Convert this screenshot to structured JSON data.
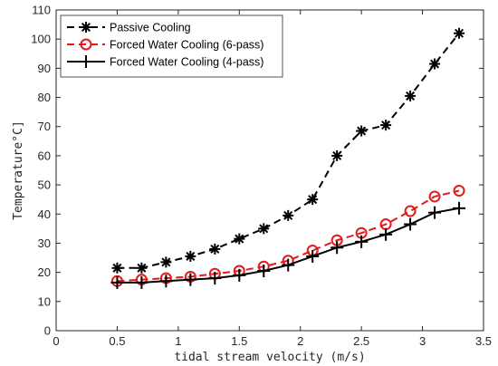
{
  "chart_data": {
    "type": "line",
    "xlabel": "tidal stream velocity (m/s)",
    "ylabel": "Temperature°C]",
    "xlim": [
      0,
      3.5
    ],
    "ylim": [
      0,
      110
    ],
    "xticks": [
      "0",
      "0.5",
      "1",
      "1.5",
      "2",
      "2.5",
      "3",
      "3.5"
    ],
    "yticks": [
      "0",
      "10",
      "20",
      "30",
      "40",
      "50",
      "60",
      "70",
      "80",
      "90",
      "100",
      "110"
    ],
    "grid": false,
    "legend_position": "top-left",
    "x": [
      0.5,
      0.7,
      0.9,
      1.1,
      1.3,
      1.5,
      1.7,
      1.9,
      2.1,
      2.3,
      2.5,
      2.7,
      2.9,
      3.1,
      3.3
    ],
    "series": [
      {
        "name": "Passive Cooling",
        "color": "#000000",
        "line": "dashed",
        "marker": "asterisk",
        "values": [
          21.5,
          21.5,
          23.5,
          25.5,
          28,
          31.5,
          35,
          39.5,
          45,
          60,
          68.5,
          70.5,
          80.5,
          91.5,
          102
        ]
      },
      {
        "name": "Forced Water Cooling (6-pass)",
        "color": "#e31a1c",
        "line": "dashed",
        "marker": "circle",
        "values": [
          17,
          17.5,
          18,
          18.5,
          19.5,
          20.5,
          22,
          24,
          27.5,
          31,
          33.5,
          36.5,
          41,
          46,
          48
        ]
      },
      {
        "name": "Forced Water Cooling (4-pass)",
        "color": "#000000",
        "line": "solid",
        "marker": "plus",
        "values": [
          16.5,
          16.5,
          17,
          17.5,
          18,
          19,
          20.5,
          22.5,
          25.5,
          28.5,
          30.5,
          33,
          36.5,
          40.5,
          42
        ]
      }
    ]
  }
}
